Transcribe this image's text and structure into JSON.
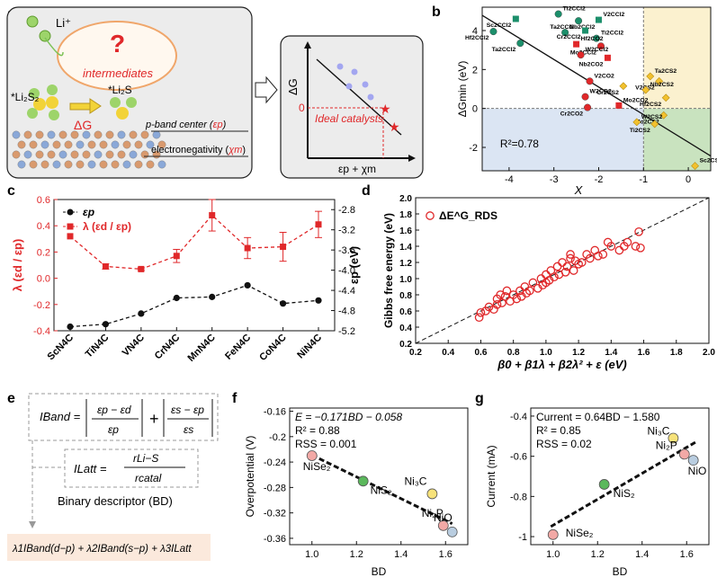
{
  "colors": {
    "red": "#e0282a",
    "black": "#111111",
    "blue_region": "#dbe5f3",
    "green_region": "#c9e3bf",
    "yellow_region": "#fbf1cf",
    "panel_a_bg": "#ececec"
  },
  "panels": {
    "a": {
      "label": "a",
      "li_plus": "Li⁺",
      "question": "?",
      "intermediates": "intermediates",
      "li2s2": "*Li₂S₂",
      "li2s": "*Li₂S",
      "delta_g": "ΔG",
      "band_pre": "p-band center (",
      "band_sym": "εp",
      "band_post": ")",
      "elec_pre": "electronegativity (",
      "elec_sym": "χm",
      "elec_post": ")",
      "ideal": "Ideal catalysts",
      "y_axis": "ΔG",
      "zero": "0",
      "x_axis": "εp + χm"
    },
    "b": {
      "label": "b"
    },
    "c": {
      "label": "c"
    },
    "d": {
      "label": "d"
    },
    "e": {
      "label": "e",
      "iband": "IBand",
      "ilatt": "ILatt",
      "t1_num": "εp − εd",
      "t1_den": "εp",
      "plus": "+",
      "t2_num": "εs − εp",
      "t2_den": "εs",
      "latt_num": "rLi−S",
      "latt_den": "rcatal",
      "bd_title": "Binary descriptor (BD)",
      "formula": "λ1IBand(d−p) + λ2IBand(s−p) + λ3ILatt"
    },
    "f": {
      "label": "f"
    },
    "g": {
      "label": "g"
    }
  },
  "chart_data": [
    {
      "id": "b",
      "type": "scatter",
      "xlabel": "X",
      "ylabel": "ΔGmin (eV)",
      "xlim": [
        -4.6,
        0.5
      ],
      "ylim": [
        -3.2,
        5.2
      ],
      "xticks": [
        -4,
        -3,
        -2,
        -1,
        0
      ],
      "yticks": [
        -2,
        0,
        2,
        4
      ],
      "annotation": "R²=0.78",
      "regions": [
        {
          "color": "#dbe5f3",
          "x": [
            -4.6,
            -1.0
          ],
          "y": [
            -3.2,
            0
          ]
        },
        {
          "color": "#c9e3bf",
          "x": [
            -1.0,
            0.5
          ],
          "y": [
            -3.2,
            0
          ]
        },
        {
          "color": "#fbf1cf",
          "x": [
            -1.0,
            0.5
          ],
          "y": [
            0,
            5.2
          ]
        }
      ],
      "fit_line": {
        "x": [
          -4.6,
          0.5
        ],
        "y": [
          4.78,
          -2.44
        ]
      },
      "points": [
        {
          "label": "Sc2CCl2",
          "x": -3.85,
          "y": 4.6,
          "color": "#1c8f6b"
        },
        {
          "label": "Ti2CCl2",
          "x": -2.9,
          "y": 4.85,
          "color": "#1c8f6b"
        },
        {
          "label": "Ta2CCl2",
          "x": -2.45,
          "y": 4.5,
          "color": "#1c8f6b"
        },
        {
          "label": "V2CCl2",
          "x": -2.0,
          "y": 4.55,
          "color": "#1c8f6b"
        },
        {
          "label": "Hf2CCl2",
          "x": -4.35,
          "y": 3.95,
          "color": "#1c8f6b"
        },
        {
          "label": "Nb2CCl2",
          "x": -2.75,
          "y": 3.9,
          "color": "#1c8f6b"
        },
        {
          "label": "Cr2CCl2",
          "x": -2.3,
          "y": 4.0,
          "color": "#1c8f6b"
        },
        {
          "label": "Ti2CCl2",
          "x": -2.05,
          "y": 3.6,
          "color": "#1c8f6b"
        },
        {
          "label": "Ta2CCl2",
          "x": -3.75,
          "y": 3.35,
          "color": "#1c8f6b"
        },
        {
          "label": "Hf2CO2",
          "x": -2.5,
          "y": 3.3,
          "color": "#e0282a"
        },
        {
          "label": "Mo2CCl2",
          "x": -1.95,
          "y": 3.2,
          "color": "#e0282a"
        },
        {
          "label": "W2CCl2",
          "x": -2.4,
          "y": 2.75,
          "color": "#e0282a"
        },
        {
          "label": "Nb2CO2",
          "x": -1.8,
          "y": 2.6,
          "color": "#e0282a"
        },
        {
          "label": "V2CO2",
          "x": -2.2,
          "y": 1.4,
          "color": "#e0282a"
        },
        {
          "label": "Cr2CS2",
          "x": -1.45,
          "y": 1.15,
          "color": "#f2c12e"
        },
        {
          "label": "Ta2CS2",
          "x": -0.85,
          "y": 1.65,
          "color": "#f2c12e"
        },
        {
          "label": "V2CS2",
          "x": -0.65,
          "y": 1.4,
          "color": "#f2c12e"
        },
        {
          "label": "Nb2CS2",
          "x": -0.95,
          "y": 0.95,
          "color": "#f2c12e"
        },
        {
          "label": "Hf2CS2",
          "x": -0.5,
          "y": 0.55,
          "color": "#f2c12e"
        },
        {
          "label": "W2CO2",
          "x": -2.3,
          "y": 0.6,
          "color": "#e0282a"
        },
        {
          "label": "Cr2CO2",
          "x": -2.25,
          "y": 0.05,
          "color": "#e0282a"
        },
        {
          "label": "Mo2CO2",
          "x": -1.55,
          "y": 0.15,
          "color": "#e0282a"
        },
        {
          "label": "Mo2CS2",
          "x": -0.55,
          "y": -0.35,
          "color": "#f2c12e"
        },
        {
          "label": "W2CS2",
          "x": -1.15,
          "y": -0.7,
          "color": "#f2c12e"
        },
        {
          "label": "Ti2CS2",
          "x": -0.75,
          "y": -0.8,
          "color": "#f2c12e"
        },
        {
          "label": "Sc2CS2",
          "x": 0.15,
          "y": -2.95,
          "color": "#f2c12e"
        }
      ]
    },
    {
      "id": "c",
      "type": "line",
      "categories": [
        "ScN4C",
        "TiN4C",
        "VN4C",
        "CrN4C",
        "MnN4C",
        "FeN4C",
        "CoN4C",
        "NiN4C"
      ],
      "left_axis": {
        "label": "λ (εd / εp)",
        "lim": [
          -0.4,
          0.6
        ],
        "ticks": [
          -0.4,
          -0.2,
          0.0,
          0.2,
          0.4,
          0.6
        ]
      },
      "right_axis": {
        "label": "εp (eV)",
        "lim": [
          -5.2,
          -2.6
        ],
        "ticks": [
          -2.8,
          -3.2,
          -3.6,
          -4.0,
          -4.4,
          -4.8,
          -5.2
        ]
      },
      "series": [
        {
          "name": "εp",
          "axis": "right",
          "color": "#111111",
          "values": [
            -5.12,
            -5.07,
            -4.86,
            -4.55,
            -4.53,
            -4.3,
            -4.66,
            -4.6
          ]
        },
        {
          "name": "λ (εd / εp)",
          "axis": "left",
          "color": "#e0282a",
          "values": [
            0.32,
            0.09,
            0.07,
            0.17,
            0.48,
            0.23,
            0.24,
            0.41
          ],
          "errors": [
            0.0,
            0.02,
            0.01,
            0.05,
            0.12,
            0.08,
            0.11,
            0.1
          ]
        }
      ]
    },
    {
      "id": "d",
      "type": "scatter",
      "xlabel": "β0 + β1λ + β2λ² + ε (eV)",
      "ylabel": "Gibbs free energy (eV)",
      "legend": "ΔE^G_RDS",
      "xlim": [
        0.2,
        2.0
      ],
      "ylim": [
        0.2,
        2.0
      ],
      "xticks": [
        0.2,
        0.4,
        0.6,
        0.8,
        1.0,
        1.2,
        1.4,
        1.6,
        1.8,
        2.0
      ],
      "yticks": [
        0.2,
        0.4,
        0.6,
        0.8,
        1.0,
        1.2,
        1.4,
        1.6,
        1.8,
        2.0
      ],
      "x": [
        0.59,
        0.6,
        0.63,
        0.65,
        0.68,
        0.7,
        0.72,
        0.73,
        0.75,
        0.76,
        0.78,
        0.8,
        0.82,
        0.84,
        0.85,
        0.87,
        0.9,
        0.92,
        0.95,
        0.97,
        0.98,
        1.0,
        1.02,
        1.03,
        1.05,
        1.07,
        1.08,
        1.1,
        1.12,
        1.13,
        1.15,
        1.17,
        1.18,
        1.2,
        1.22,
        1.25,
        1.27,
        1.3,
        1.32,
        1.35,
        1.38,
        1.4,
        1.45,
        1.48,
        1.5,
        1.55,
        1.57,
        1.58,
        0.7,
        0.88,
        1.0,
        1.15
      ],
      "y": [
        0.52,
        0.58,
        0.6,
        0.65,
        0.62,
        0.75,
        0.8,
        0.7,
        0.78,
        0.85,
        0.72,
        0.8,
        0.75,
        0.85,
        0.78,
        0.9,
        0.85,
        0.95,
        0.88,
        1.0,
        0.92,
        1.05,
        0.98,
        1.1,
        1.02,
        1.15,
        1.05,
        1.2,
        1.08,
        1.15,
        1.25,
        1.1,
        1.22,
        1.18,
        1.2,
        1.3,
        1.25,
        1.35,
        1.28,
        1.3,
        1.45,
        1.4,
        1.35,
        1.4,
        1.45,
        1.4,
        1.58,
        1.38,
        0.68,
        0.82,
        0.95,
        1.3
      ],
      "fit_line": {
        "x": [
          0.2,
          2.0
        ],
        "y": [
          0.2,
          2.0
        ]
      }
    },
    {
      "id": "f",
      "type": "scatter",
      "xlabel": "BD",
      "ylabel": "Overpotential (V)",
      "xlim": [
        0.9,
        1.7
      ],
      "ylim": [
        -0.37,
        -0.155
      ],
      "xticks": [
        1.0,
        1.2,
        1.4,
        1.6
      ],
      "yticks": [
        -0.16,
        -0.2,
        -0.24,
        -0.28,
        -0.32,
        -0.36
      ],
      "annotations": [
        "E = −0.171BD − 0.058",
        "R² = 0.88",
        "RSS = 0.001"
      ],
      "fit_line": {
        "x": [
          1.0,
          1.63
        ],
        "y": [
          -0.229,
          -0.337
        ]
      },
      "points": [
        {
          "label": "NiSe₂",
          "x": 1.0,
          "y": -0.23,
          "color": "#f2a9a6"
        },
        {
          "label": "NiS₂",
          "x": 1.23,
          "y": -0.27,
          "color": "#5bb85c"
        },
        {
          "label": "Ni₃C",
          "x": 1.54,
          "y": -0.29,
          "color": "#f7e27a"
        },
        {
          "label": "Ni₂P",
          "x": 1.59,
          "y": -0.34,
          "color": "#f2a9a6"
        },
        {
          "label": "NiO",
          "x": 1.63,
          "y": -0.35,
          "color": "#b9cde0"
        }
      ]
    },
    {
      "id": "g",
      "type": "scatter",
      "xlabel": "BD",
      "ylabel": "Current (mA)",
      "xlim": [
        0.9,
        1.7
      ],
      "ylim": [
        -1.04,
        -0.36
      ],
      "xticks": [
        1.0,
        1.2,
        1.4,
        1.6
      ],
      "yticks": [
        -0.4,
        -0.6,
        -0.8,
        -1.0
      ],
      "annotations": [
        "Current = 0.64BD − 1.580",
        "R² = 0.85",
        "RSS = 0.02"
      ],
      "fit_line": {
        "x": [
          0.99,
          1.64
        ],
        "y": [
          -0.95,
          -0.53
        ]
      },
      "points": [
        {
          "label": "NiSe₂",
          "x": 1.0,
          "y": -0.99,
          "color": "#f2a9a6"
        },
        {
          "label": "NiS₂",
          "x": 1.23,
          "y": -0.74,
          "color": "#5bb85c"
        },
        {
          "label": "Ni₃C",
          "x": 1.54,
          "y": -0.51,
          "color": "#f7e27a"
        },
        {
          "label": "Ni₂P",
          "x": 1.59,
          "y": -0.59,
          "color": "#f2a9a6"
        },
        {
          "label": "NiO",
          "x": 1.63,
          "y": -0.62,
          "color": "#b9cde0"
        }
      ]
    }
  ]
}
